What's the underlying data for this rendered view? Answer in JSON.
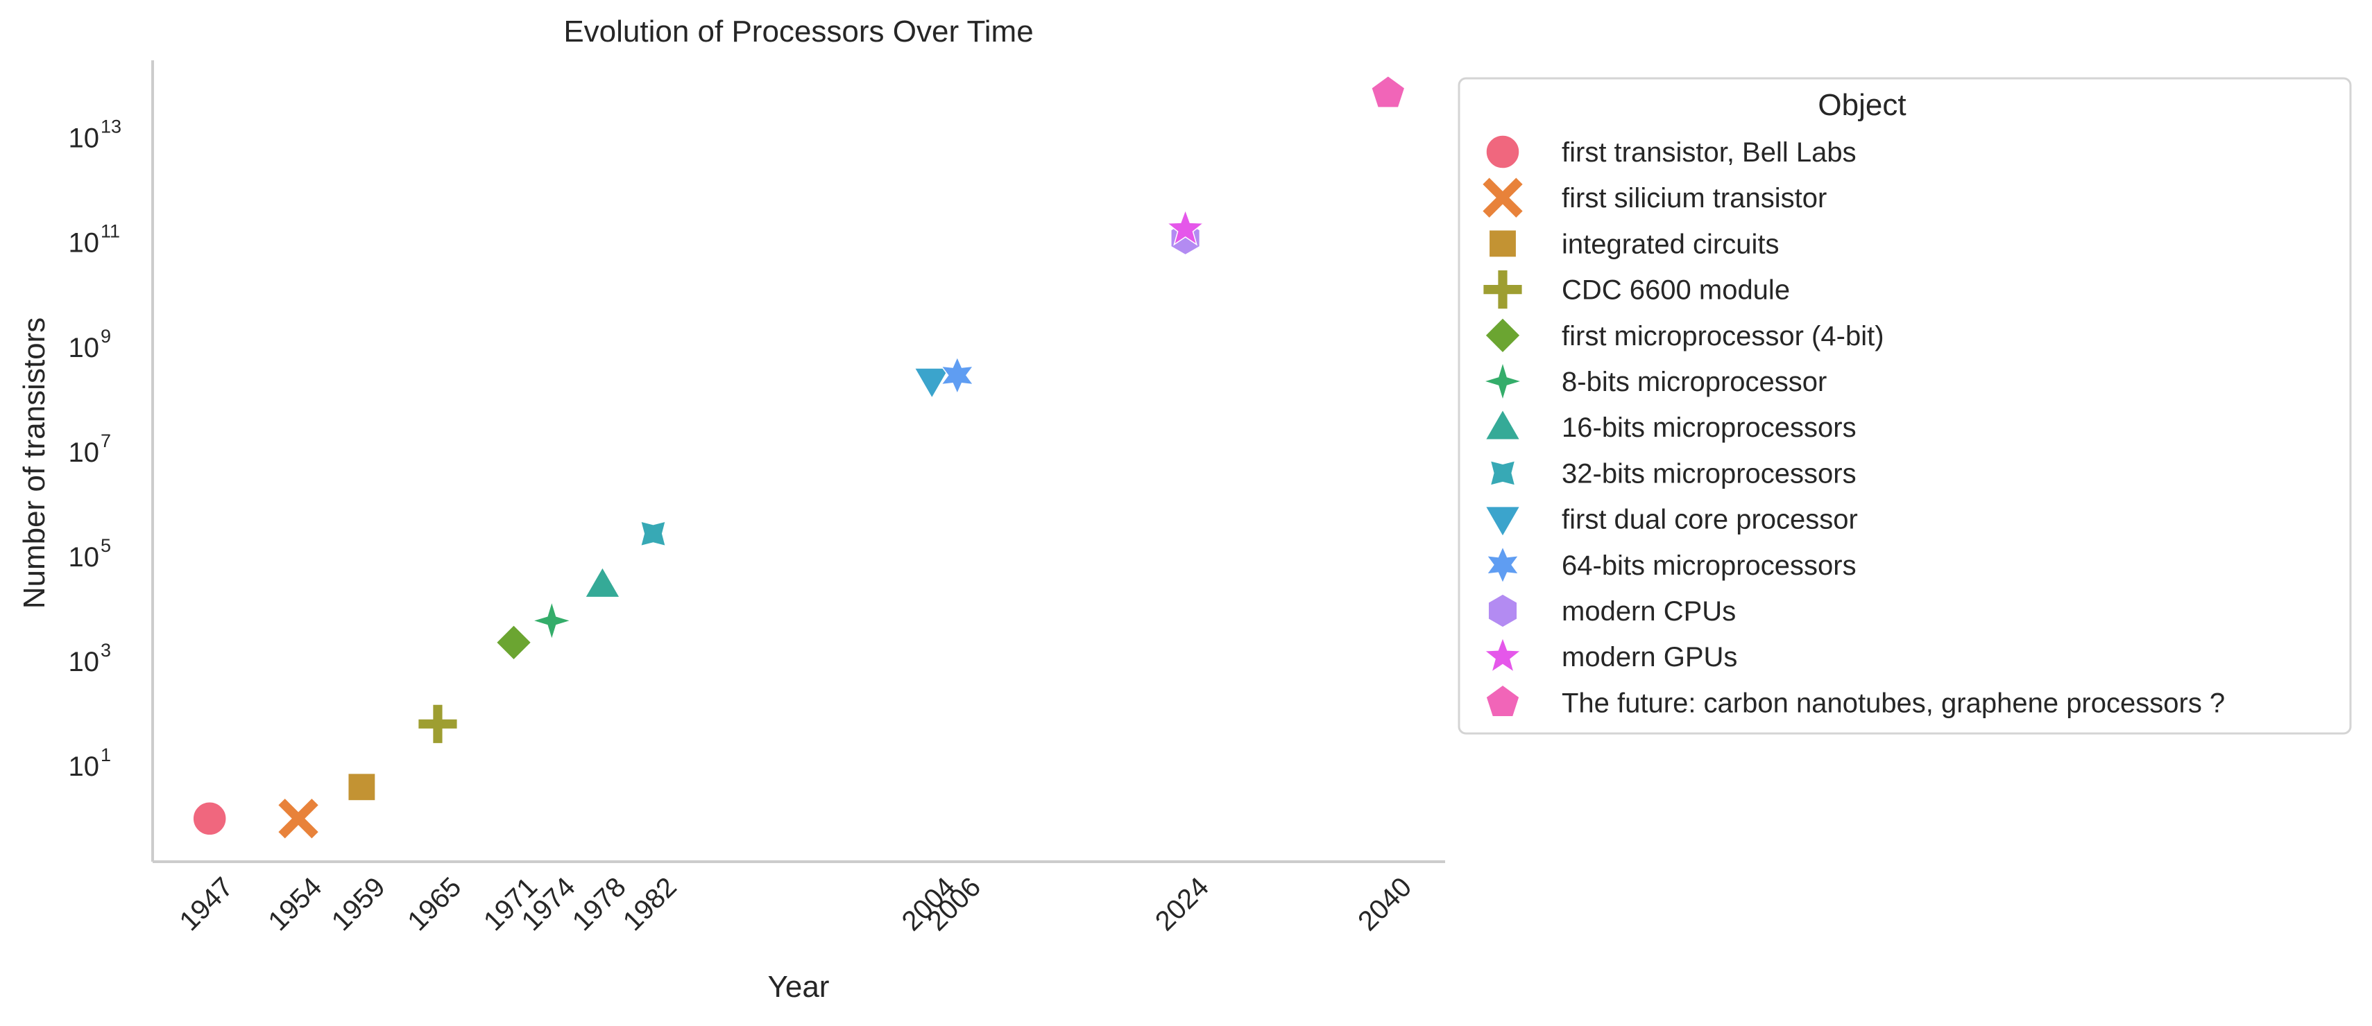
{
  "chart_data": {
    "type": "scatter",
    "title": "Evolution of Processors Over Time",
    "xlabel": "Year",
    "ylabel": "Number of transistors",
    "yscale": "log",
    "xlim": [
      1942.5,
      2044.5
    ],
    "ylim": [
      0.15,
      300000000000000
    ],
    "grid": false,
    "x_ticks": [
      1947,
      1954,
      1959,
      1965,
      1971,
      1974,
      1978,
      1982,
      2004,
      2006,
      2024,
      2040
    ],
    "y_tick_exponents": [
      1,
      3,
      5,
      7,
      9,
      11,
      13
    ],
    "legend": {
      "title": "Object",
      "placement": "outside right, top"
    },
    "points": [
      {
        "name": "first transistor, Bell Labs",
        "x": 1947,
        "y": 1,
        "marker": "circle",
        "color": "#f0677e"
      },
      {
        "name": "first silicium transistor",
        "x": 1954,
        "y": 1,
        "marker": "x",
        "color": "#e8823a"
      },
      {
        "name": "integrated circuits",
        "x": 1959,
        "y": 4,
        "marker": "square",
        "color": "#c39333"
      },
      {
        "name": "CDC 6600 module",
        "x": 1965,
        "y": 64,
        "marker": "plus",
        "color": "#9e9e31"
      },
      {
        "name": "first microprocessor (4-bit)",
        "x": 1971,
        "y": 2300,
        "marker": "diamond",
        "color": "#6ba531"
      },
      {
        "name": "8-bits microprocessor",
        "x": 1974,
        "y": 6000,
        "marker": "star4",
        "color": "#34ad6a"
      },
      {
        "name": "16-bits microprocessors",
        "x": 1978,
        "y": 29000,
        "marker": "triangle-up",
        "color": "#35aa97"
      },
      {
        "name": "32-bits microprocessors",
        "x": 1982,
        "y": 275000,
        "marker": "star4-concave",
        "color": "#37a9b5"
      },
      {
        "name": "first dual core processor",
        "x": 2004,
        "y": 230000000,
        "marker": "triangle-down",
        "color": "#3ba4cc"
      },
      {
        "name": "64-bits microprocessors",
        "x": 2006,
        "y": 290000000,
        "marker": "star6",
        "color": "#5f9df2"
      },
      {
        "name": "modern CPUs",
        "x": 2024,
        "y": 120000000000,
        "marker": "hexagon",
        "color": "#b38bf2"
      },
      {
        "name": "modern GPUs",
        "x": 2024,
        "y": 180000000000,
        "marker": "star5",
        "color": "#e557ea"
      },
      {
        "name": "The future: carbon nanotubes, graphene processors ?",
        "x": 2040,
        "y": 70000000000000,
        "marker": "pentagon",
        "color": "#f165b8"
      }
    ]
  }
}
